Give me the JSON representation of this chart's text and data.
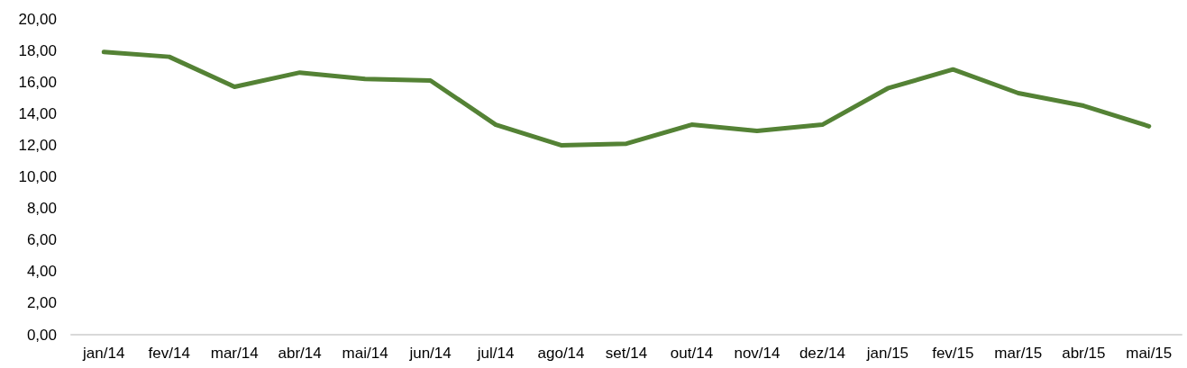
{
  "chart_data": {
    "type": "line",
    "categories": [
      "jan/14",
      "fev/14",
      "mar/14",
      "abr/14",
      "mai/14",
      "jun/14",
      "jul/14",
      "ago/14",
      "set/14",
      "out/14",
      "nov/14",
      "dez/14",
      "jan/15",
      "fev/15",
      "mar/15",
      "abr/15",
      "mai/15"
    ],
    "series": [
      {
        "color": "#548235",
        "values": [
          17.9,
          17.6,
          15.7,
          16.6,
          16.2,
          16.1,
          13.3,
          12.0,
          12.1,
          13.3,
          12.9,
          13.3,
          15.6,
          16.8,
          15.3,
          14.5,
          13.2
        ]
      }
    ],
    "ylim": [
      0,
      20
    ],
    "yticks": [
      {
        "value": 0,
        "label": "0,00"
      },
      {
        "value": 2,
        "label": "2,00"
      },
      {
        "value": 4,
        "label": "4,00"
      },
      {
        "value": 6,
        "label": "6,00"
      },
      {
        "value": 8,
        "label": "8,00"
      },
      {
        "value": 10,
        "label": "10,00"
      },
      {
        "value": 12,
        "label": "12,00"
      },
      {
        "value": 14,
        "label": "14,00"
      },
      {
        "value": 16,
        "label": "16,00"
      },
      {
        "value": 18,
        "label": "18,00"
      },
      {
        "value": 20,
        "label": "20,00"
      }
    ],
    "grid": false,
    "marker": "none",
    "line_style": "solid"
  }
}
